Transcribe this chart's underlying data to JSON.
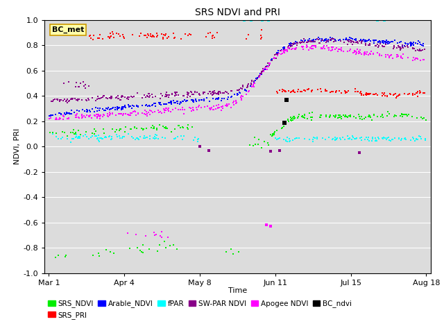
{
  "title": "SRS NDVI and PRI",
  "xlabel": "Time",
  "ylabel": "NDVI, PRI",
  "ylim": [
    -1.0,
    1.0
  ],
  "yticks": [
    -1.0,
    -0.8,
    -0.6,
    -0.4,
    -0.2,
    0.0,
    0.2,
    0.4,
    0.6,
    0.8,
    1.0
  ],
  "xtick_labels": [
    "Mar 1",
    "Apr 4",
    "May 8",
    "Jun 11",
    "Jul 15",
    "Aug 18"
  ],
  "xtick_pos": [
    0,
    34,
    68,
    102,
    136,
    170
  ],
  "bg_color": "#dcdcdc",
  "colors": {
    "SRS_NDVI": "#00ee00",
    "SRS_PRI": "#ff0000",
    "Arable_NDVI": "#0000ff",
    "fPAR": "#00ffff",
    "SW_PAR_NDVI": "#880088",
    "Apogee_NDVI": "#ff00ff",
    "BC_ndvi": "#000000"
  },
  "annotation_text": "BC_met",
  "annotation_facecolor": "#ffffaa",
  "annotation_edgecolor": "#cc9900"
}
